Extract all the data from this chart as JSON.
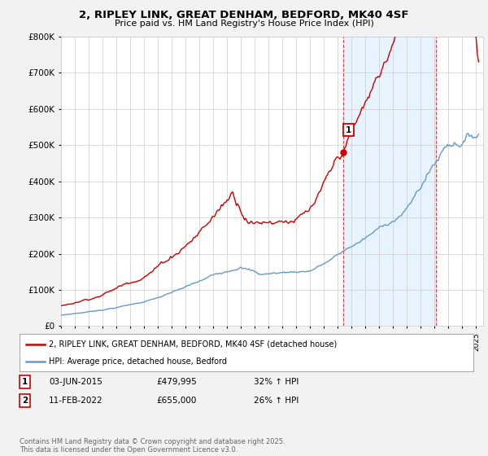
{
  "title": "2, RIPLEY LINK, GREAT DENHAM, BEDFORD, MK40 4SF",
  "subtitle": "Price paid vs. HM Land Registry's House Price Index (HPI)",
  "legend_house": "2, RIPLEY LINK, GREAT DENHAM, BEDFORD, MK40 4SF (detached house)",
  "legend_hpi": "HPI: Average price, detached house, Bedford",
  "footnote": "Contains HM Land Registry data © Crown copyright and database right 2025.\nThis data is licensed under the Open Government Licence v3.0.",
  "purchase1_date": "03-JUN-2015",
  "purchase1_price": 479995,
  "purchase1_hpi": "32% ↑ HPI",
  "purchase2_date": "11-FEB-2022",
  "purchase2_price": 655000,
  "purchase2_hpi": "26% ↑ HPI",
  "house_color": "#cc0000",
  "hpi_color": "#6699cc",
  "background_color": "#f2f2f2",
  "plot_bg_color": "#ffffff",
  "ylim": [
    0,
    800000
  ],
  "yticks": [
    0,
    100000,
    200000,
    300000,
    400000,
    500000,
    600000,
    700000,
    800000
  ],
  "purchase1_year": 2015.42,
  "purchase2_year": 2022.12,
  "xmin": 1995,
  "xmax": 2025.5
}
